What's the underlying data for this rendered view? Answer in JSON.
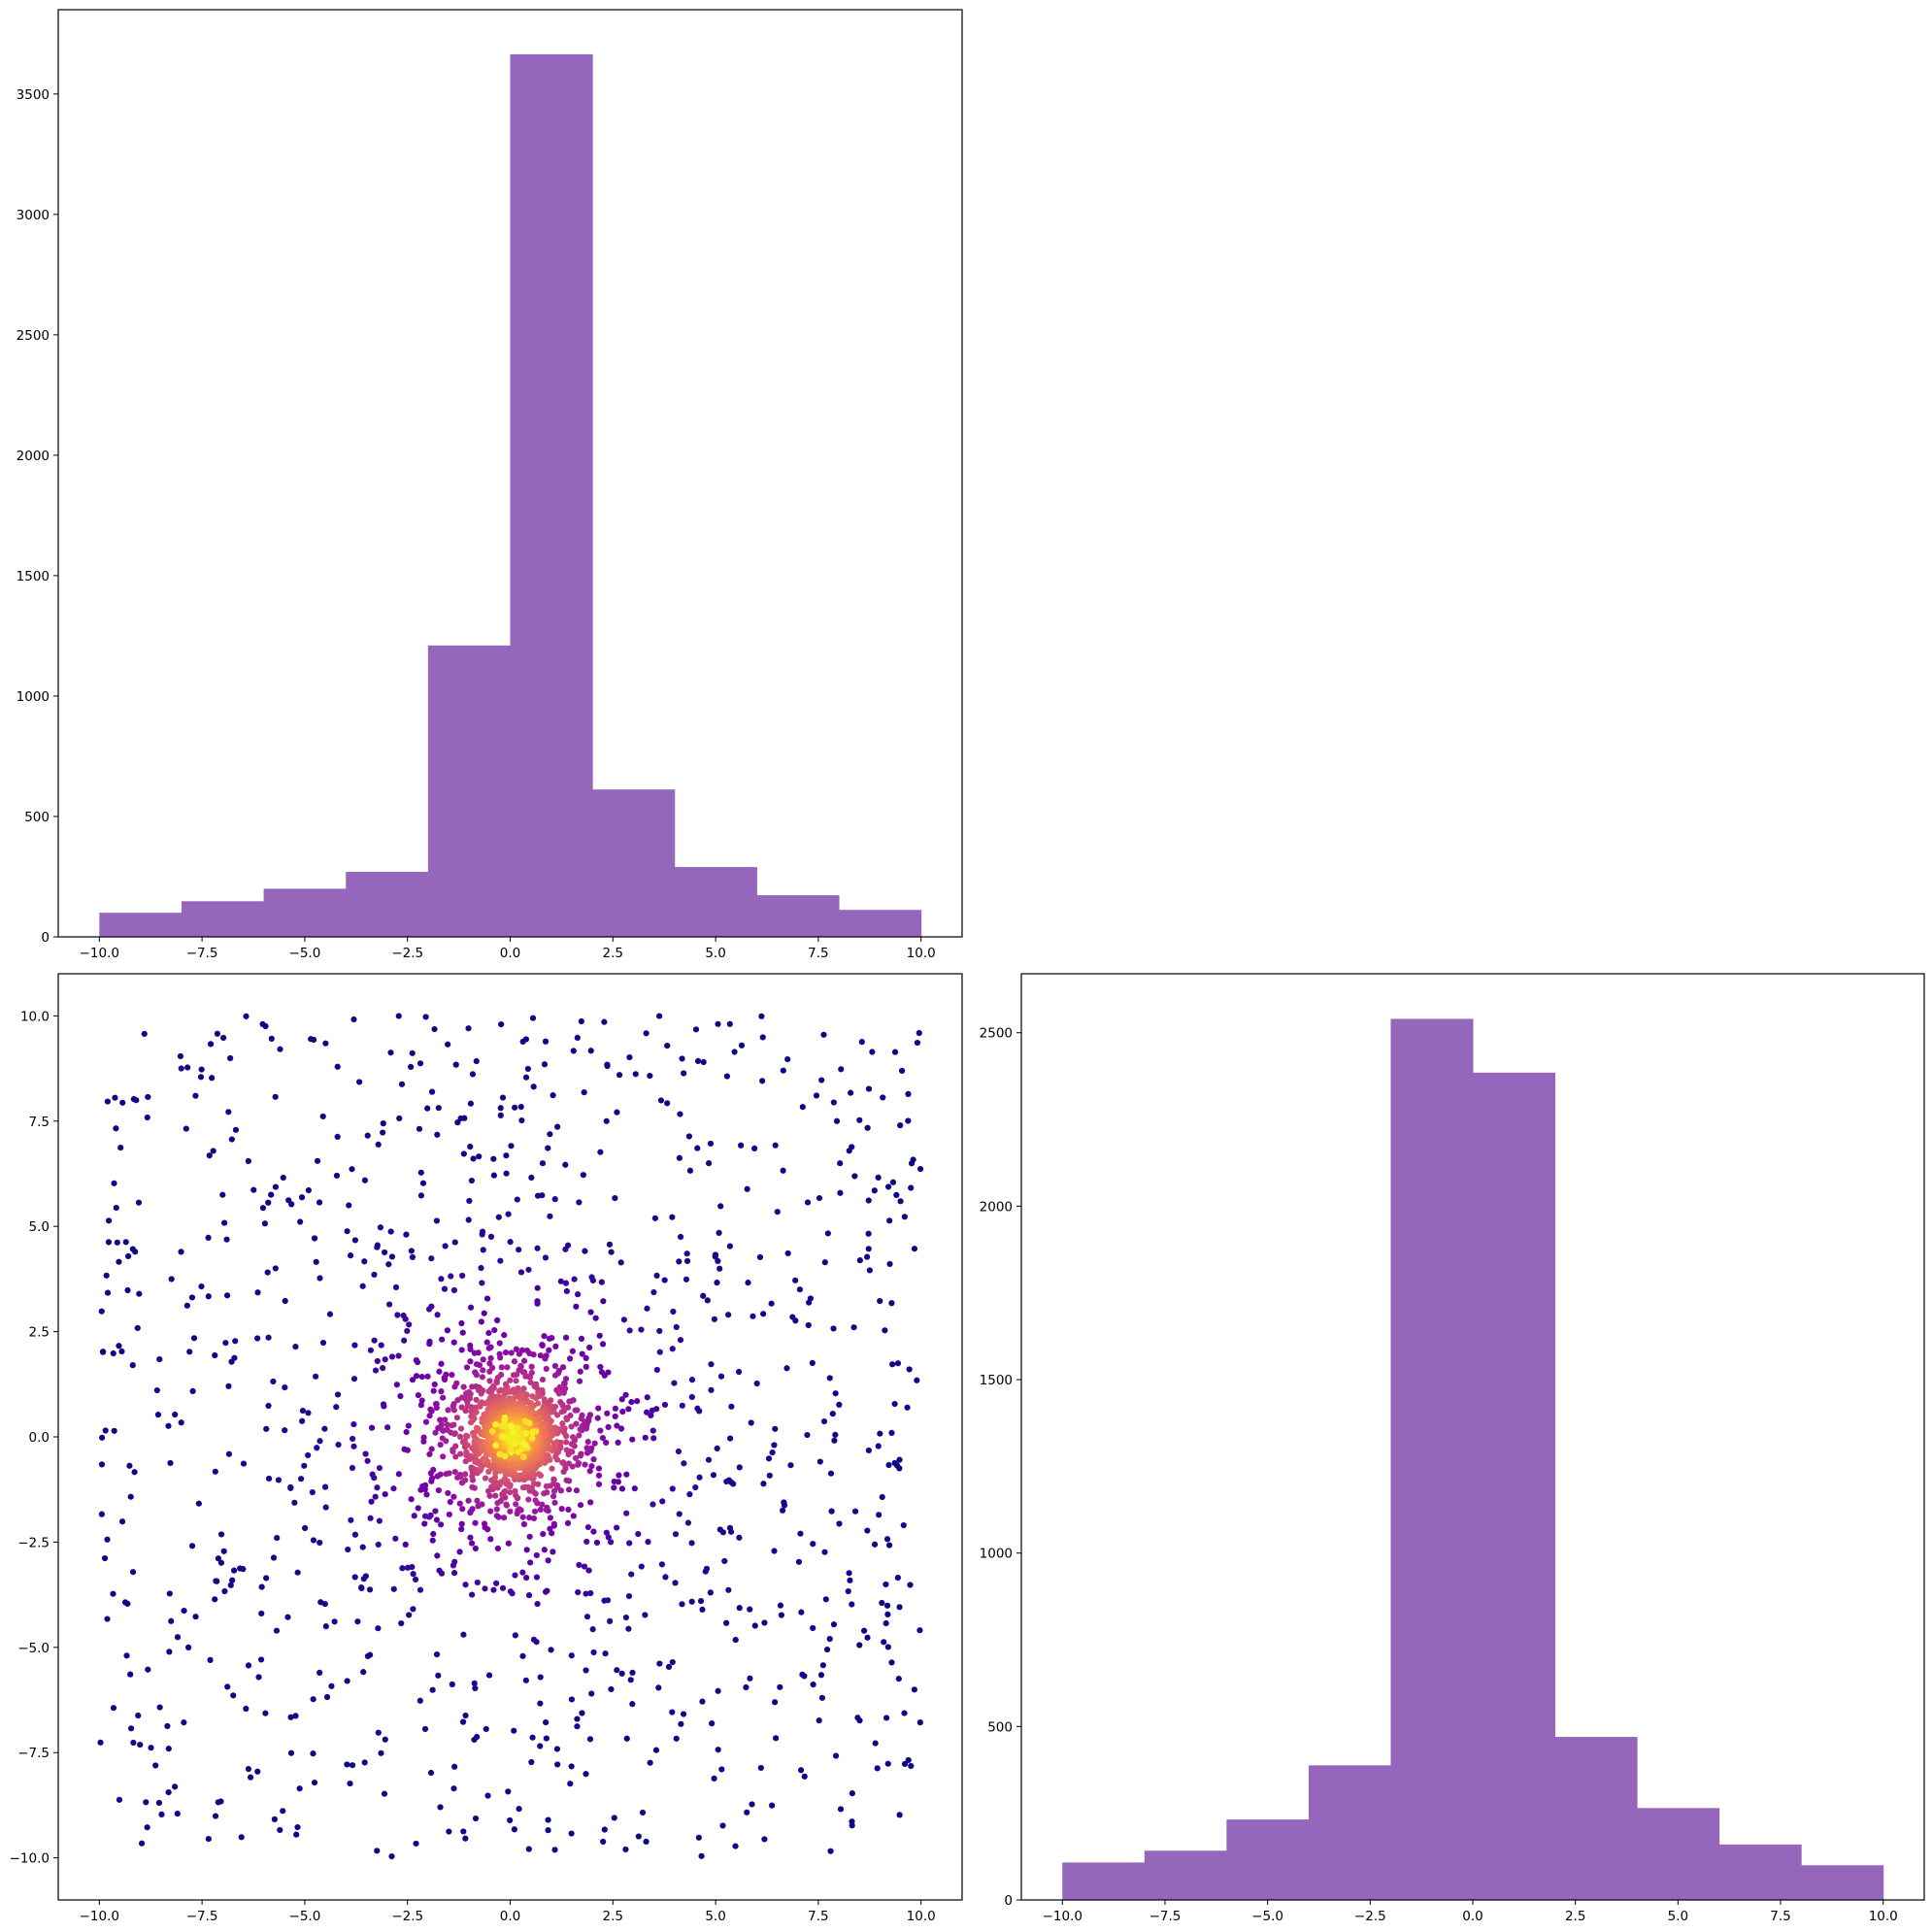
{
  "chart_data": [
    {
      "id": "top-left",
      "type": "histogram",
      "bin_edges": [
        -10,
        -8,
        -6,
        -4,
        -2,
        0,
        2,
        4,
        6,
        8,
        10
      ],
      "values": [
        100,
        148,
        200,
        270,
        1210,
        3665,
        612,
        290,
        173,
        112
      ],
      "color": "#9467bd",
      "xlim": [
        -11,
        11
      ],
      "ylim": [
        0,
        3850
      ],
      "xticks": [
        -10,
        -7.5,
        -5,
        -2.5,
        0,
        2.5,
        5,
        7.5,
        10
      ],
      "xtick_labels": [
        "−10.0",
        "−7.5",
        "−5.0",
        "−2.5",
        "0.0",
        "2.5",
        "5.0",
        "7.5",
        "10.0"
      ],
      "yticks": [
        0,
        500,
        1000,
        1500,
        2000,
        2500,
        3000,
        3500
      ],
      "ytick_labels": [
        "0",
        "500",
        "1000",
        "1500",
        "2000",
        "2500",
        "3000",
        "3500"
      ],
      "title": "",
      "xlabel": "",
      "ylabel": "",
      "grid": false
    },
    {
      "id": "bottom-left",
      "type": "scatter",
      "n_points": 3000,
      "colormap": "plasma",
      "color_encoding": "point density",
      "x_distribution": "dense core near (0, 0) with uniform scatter over [-10, 10]",
      "xlim": [
        -11,
        11
      ],
      "ylim": [
        -11,
        11
      ],
      "xticks": [
        -10,
        -7.5,
        -5,
        -2.5,
        0,
        2.5,
        5,
        7.5,
        10
      ],
      "xtick_labels": [
        "−10.0",
        "−7.5",
        "−5.0",
        "−2.5",
        "0.0",
        "2.5",
        "5.0",
        "7.5",
        "10.0"
      ],
      "yticks": [
        -10,
        -7.5,
        -5,
        -2.5,
        0,
        2.5,
        5,
        7.5,
        10
      ],
      "ytick_labels": [
        "−10.0",
        "−7.5",
        "−5.0",
        "−2.5",
        "0.0",
        "2.5",
        "5.0",
        "7.5",
        "10.0"
      ],
      "title": "",
      "xlabel": "",
      "ylabel": "",
      "grid": false
    },
    {
      "id": "bottom-right",
      "type": "histogram",
      "bin_edges": [
        -10,
        -8,
        -6,
        -4,
        -2,
        0,
        2,
        4,
        6,
        8,
        10
      ],
      "values": [
        108,
        142,
        232,
        388,
        2540,
        2385,
        470,
        265,
        160,
        100
      ],
      "color": "#9467bd",
      "xlim": [
        -11,
        11
      ],
      "ylim": [
        0,
        2670
      ],
      "xticks": [
        -10,
        -7.5,
        -5,
        -2.5,
        0,
        2.5,
        5,
        7.5,
        10
      ],
      "xtick_labels": [
        "−10.0",
        "−7.5",
        "−5.0",
        "−2.5",
        "0.0",
        "2.5",
        "5.0",
        "7.5",
        "10.0"
      ],
      "yticks": [
        0,
        500,
        1000,
        1500,
        2000,
        2500
      ],
      "ytick_labels": [
        "0",
        "500",
        "1000",
        "1500",
        "2000",
        "2500"
      ],
      "title": "",
      "xlabel": "",
      "ylabel": "",
      "grid": false
    }
  ]
}
